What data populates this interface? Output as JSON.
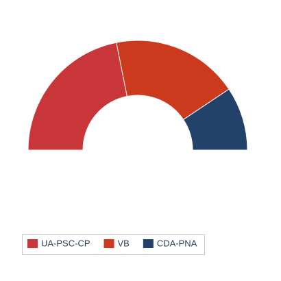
{
  "chart_data": {
    "type": "semi-donut",
    "series": [
      {
        "name": "UA-PSC-CP",
        "color": "#c8363a",
        "values": [
          7
        ]
      },
      {
        "name": "VB",
        "color": "#cc3a1e",
        "values": [
          6
        ]
      },
      {
        "name": "CDA-PNA",
        "color": "#23426a",
        "values": [
          3
        ]
      }
    ]
  }
}
